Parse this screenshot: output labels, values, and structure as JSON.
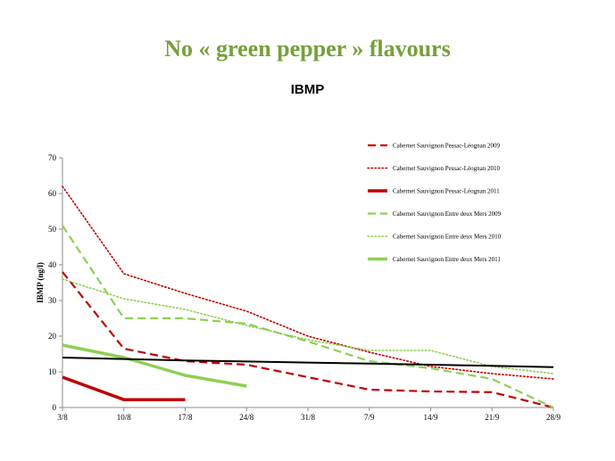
{
  "slide": {
    "title": "No « green pepper » flavours"
  },
  "chart_data": {
    "type": "line",
    "title": "IBMP",
    "xlabel": "",
    "ylabel": "IBMP (ng/l)",
    "categories": [
      "3/8",
      "10/8",
      "17/8",
      "24/8",
      "31/8",
      "7/9",
      "14/9",
      "21/9",
      "28/9"
    ],
    "ylim": [
      0,
      70
    ],
    "yticks": [
      0,
      10,
      20,
      30,
      40,
      50,
      60,
      70
    ],
    "legend_position": "top-right",
    "grid": false,
    "series": [
      {
        "name": "Cabernet Sauvignon Pessac-Léognan 2009",
        "color": "#c00000",
        "style": "dashed",
        "values": [
          38,
          16.5,
          13,
          12,
          8.5,
          5,
          4.5,
          4.3,
          0
        ]
      },
      {
        "name": "Cabernet Sauvignon Pessac-Léognan 2010",
        "color": "#c00000",
        "style": "dotted",
        "values": [
          62,
          37.5,
          32,
          27,
          20,
          15.5,
          11.5,
          9.5,
          8
        ]
      },
      {
        "name": "Cabernet Sauvignon Pessac-Léognan 2011",
        "color": "#c00000",
        "style": "solid",
        "values": [
          8.5,
          2.2,
          2.2,
          null,
          null,
          null,
          null,
          null,
          null
        ]
      },
      {
        "name": "Cabernet Sauvignon Entre deux Mers 2009",
        "color": "#8fce54",
        "style": "dashed",
        "values": [
          51,
          25,
          25,
          23.5,
          18.5,
          13,
          11,
          8,
          0
        ]
      },
      {
        "name": "Cabernet Sauvignon Entre deux Mers 2010",
        "color": "#8fce54",
        "style": "dotted",
        "values": [
          36,
          30.5,
          27.5,
          23,
          19,
          16,
          16,
          11.5,
          9.5
        ]
      },
      {
        "name": "Cabernet Sauvignon Entre deux Mers 2011",
        "color": "#8fce54",
        "style": "solid",
        "values": [
          17.5,
          14,
          9,
          6,
          null,
          null,
          null,
          null,
          null
        ]
      },
      {
        "name": "",
        "color": "#000000",
        "style": "solid",
        "values": [
          14,
          13.6,
          13.2,
          12.9,
          12.6,
          12.3,
          12,
          11.7,
          11.3
        ]
      }
    ]
  }
}
